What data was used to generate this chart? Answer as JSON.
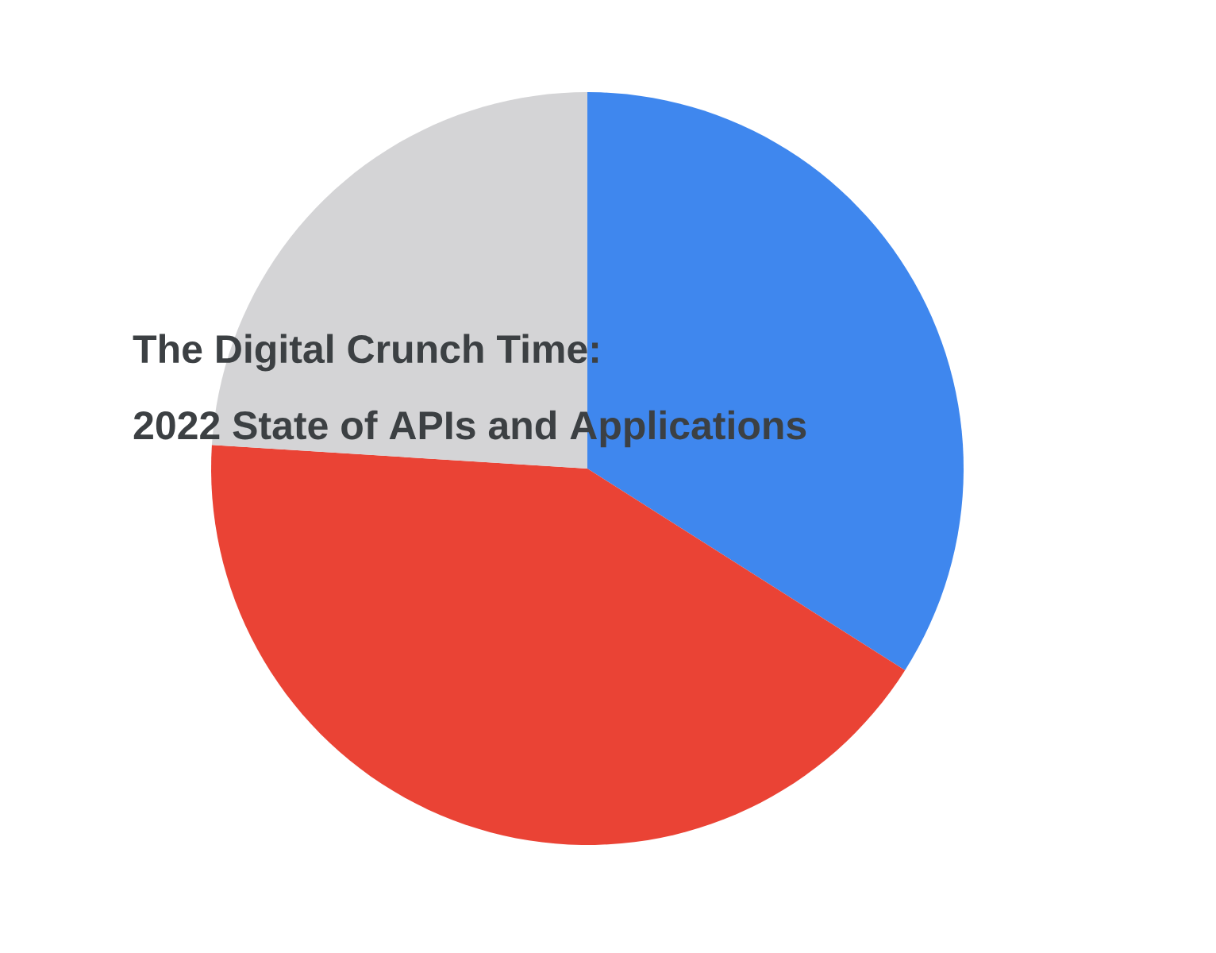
{
  "chart_data": {
    "type": "pie",
    "title": "The Digital Crunch Time:",
    "subtitle": "2022 State of APIs and Applications",
    "categories": [
      null,
      null,
      null
    ],
    "values": [
      34,
      42,
      24
    ],
    "colors": [
      "#3f87ee",
      "#ea4335",
      "#d4d4d6"
    ]
  }
}
